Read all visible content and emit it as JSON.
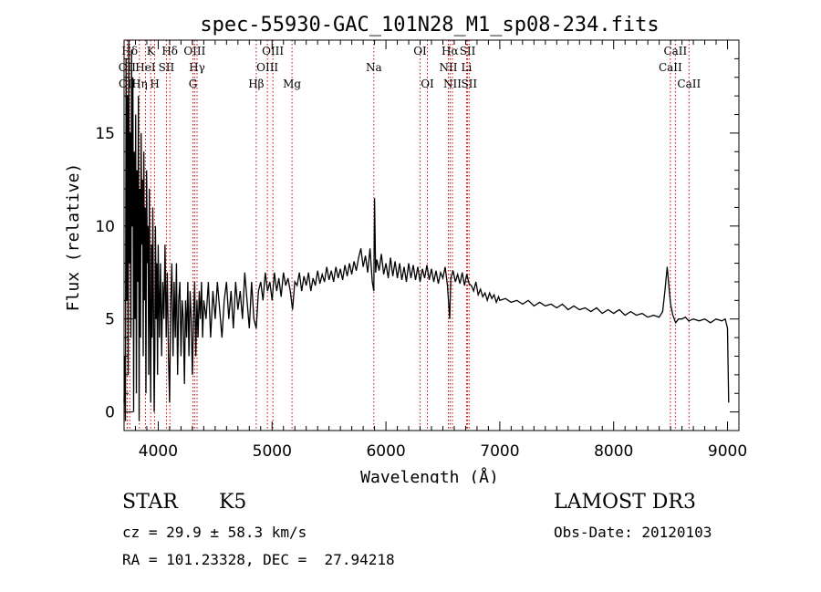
{
  "chart_data": {
    "type": "line",
    "title": "spec-55930-GAC_101N28_M1_sp08-234.fits",
    "xlabel": "Wavelength (Å)",
    "ylabel": "Flux (relative)",
    "xlim": [
      3700,
      9100
    ],
    "ylim": [
      -1,
      20
    ],
    "xticks": [
      4000,
      5000,
      6000,
      7000,
      8000,
      9000
    ],
    "yticks": [
      0,
      5,
      10,
      15
    ],
    "grid": false,
    "line_color": "#000000",
    "marker_color": "#cc0000",
    "spectral_lines": [
      {
        "label": "OII",
        "wave": 3727,
        "row": 1
      },
      {
        "label": "OII",
        "wave": 3729,
        "row": 2
      },
      {
        "label": "Hδ",
        "wave": 3750,
        "row": 0
      },
      {
        "label": "Hη",
        "wave": 3835,
        "row": 2
      },
      {
        "label": "HeI",
        "wave": 3888,
        "row": 1
      },
      {
        "label": "K",
        "wave": 3934,
        "row": 0
      },
      {
        "label": "H",
        "wave": 3969,
        "row": 2
      },
      {
        "label": "SII",
        "wave": 4072,
        "row": 1
      },
      {
        "label": "Hδ",
        "wave": 4102,
        "row": 0
      },
      {
        "label": "OIII",
        "wave": 4320,
        "row": 0
      },
      {
        "label": "G",
        "wave": 4305,
        "row": 2
      },
      {
        "label": "Hγ",
        "wave": 4341,
        "row": 1
      },
      {
        "label": "Hβ",
        "wave": 4861,
        "row": 2
      },
      {
        "label": "OIII",
        "wave": 4959,
        "row": 1
      },
      {
        "label": "OIII",
        "wave": 5007,
        "row": 0
      },
      {
        "label": "Mg",
        "wave": 5175,
        "row": 2
      },
      {
        "label": "Na",
        "wave": 5894,
        "row": 1
      },
      {
        "label": "OI",
        "wave": 6300,
        "row": 0
      },
      {
        "label": "OI",
        "wave": 6364,
        "row": 2
      },
      {
        "label": "NII",
        "wave": 6548,
        "row": 1
      },
      {
        "label": "Hα",
        "wave": 6563,
        "row": 0
      },
      {
        "label": "NII",
        "wave": 6584,
        "row": 2
      },
      {
        "label": "Li",
        "wave": 6708,
        "row": 1
      },
      {
        "label": "SII",
        "wave": 6717,
        "row": 0
      },
      {
        "label": "SII",
        "wave": 6731,
        "row": 2
      },
      {
        "label": "CaII",
        "wave": 8498,
        "row": 1
      },
      {
        "label": "CaII",
        "wave": 8542,
        "row": 0
      },
      {
        "label": "CaII",
        "wave": 8662,
        "row": 2
      }
    ],
    "series": [
      {
        "name": "flux",
        "points": [
          [
            3700,
            0.5
          ],
          [
            3705,
            3
          ],
          [
            3712,
            -0.5
          ],
          [
            3718,
            19
          ],
          [
            3724,
            6
          ],
          [
            3730,
            17
          ],
          [
            3736,
            2
          ],
          [
            3742,
            20
          ],
          [
            3748,
            8
          ],
          [
            3754,
            15
          ],
          [
            3760,
            4
          ],
          [
            3766,
            19.5
          ],
          [
            3772,
            10
          ],
          [
            3778,
            18
          ],
          [
            3784,
            0
          ],
          [
            3790,
            14
          ],
          [
            3796,
            5
          ],
          [
            3802,
            16
          ],
          [
            3808,
            1
          ],
          [
            3814,
            13
          ],
          [
            3820,
            7
          ],
          [
            3826,
            17
          ],
          [
            3832,
            -0.5
          ],
          [
            3838,
            12
          ],
          [
            3844,
            4
          ],
          [
            3850,
            15
          ],
          [
            3856,
            9
          ],
          [
            3862,
            12.5
          ],
          [
            3868,
            3
          ],
          [
            3874,
            14
          ],
          [
            3880,
            6
          ],
          [
            3886,
            11
          ],
          [
            3892,
            1
          ],
          [
            3898,
            13
          ],
          [
            3904,
            8
          ],
          [
            3910,
            10
          ],
          [
            3916,
            2
          ],
          [
            3922,
            12
          ],
          [
            3928,
            5
          ],
          [
            3934,
            0.5
          ],
          [
            3940,
            9
          ],
          [
            3946,
            4
          ],
          [
            3952,
            11
          ],
          [
            3958,
            6
          ],
          [
            3964,
            0
          ],
          [
            3970,
            3
          ],
          [
            3976,
            10
          ],
          [
            3982,
            5
          ],
          [
            3988,
            8
          ],
          [
            3994,
            2
          ],
          [
            4000,
            9
          ],
          [
            4010,
            4
          ],
          [
            4020,
            8
          ],
          [
            4030,
            3
          ],
          [
            4040,
            7
          ],
          [
            4050,
            5
          ],
          [
            4060,
            9
          ],
          [
            4070,
            4
          ],
          [
            4080,
            7.5
          ],
          [
            4090,
            3
          ],
          [
            4100,
            0.5
          ],
          [
            4110,
            6
          ],
          [
            4120,
            8
          ],
          [
            4130,
            3
          ],
          [
            4140,
            7
          ],
          [
            4150,
            4
          ],
          [
            4160,
            8
          ],
          [
            4170,
            2
          ],
          [
            4180,
            6
          ],
          [
            4190,
            7
          ],
          [
            4200,
            3
          ],
          [
            4210,
            6
          ],
          [
            4220,
            5
          ],
          [
            4230,
            1.5
          ],
          [
            4240,
            6
          ],
          [
            4250,
            4
          ],
          [
            4260,
            7
          ],
          [
            4270,
            3
          ],
          [
            4280,
            6.5
          ],
          [
            4290,
            5
          ],
          [
            4300,
            2
          ],
          [
            4310,
            5
          ],
          [
            4320,
            7
          ],
          [
            4330,
            3
          ],
          [
            4340,
            6
          ],
          [
            4350,
            4
          ],
          [
            4360,
            6.5
          ],
          [
            4370,
            5
          ],
          [
            4380,
            7
          ],
          [
            4390,
            4
          ],
          [
            4400,
            6
          ],
          [
            4420,
            5
          ],
          [
            4440,
            7
          ],
          [
            4460,
            4
          ],
          [
            4480,
            6.5
          ],
          [
            4500,
            5
          ],
          [
            4520,
            7
          ],
          [
            4540,
            5.5
          ],
          [
            4560,
            4
          ],
          [
            4580,
            6
          ],
          [
            4600,
            7
          ],
          [
            4620,
            5
          ],
          [
            4640,
            6.5
          ],
          [
            4660,
            4.5
          ],
          [
            4680,
            7
          ],
          [
            4700,
            5.5
          ],
          [
            4720,
            6.5
          ],
          [
            4740,
            5
          ],
          [
            4760,
            7.5
          ],
          [
            4780,
            6
          ],
          [
            4800,
            4.5
          ],
          [
            4820,
            7
          ],
          [
            4840,
            5
          ],
          [
            4861,
            4.5
          ],
          [
            4880,
            6.5
          ],
          [
            4900,
            7
          ],
          [
            4920,
            6
          ],
          [
            4940,
            7.5
          ],
          [
            4960,
            6.5
          ],
          [
            4980,
            7
          ],
          [
            5000,
            6
          ],
          [
            5020,
            7.5
          ],
          [
            5040,
            6.5
          ],
          [
            5060,
            7.2
          ],
          [
            5080,
            6.2
          ],
          [
            5100,
            7.5
          ],
          [
            5120,
            6.8
          ],
          [
            5140,
            7.2
          ],
          [
            5160,
            6.5
          ],
          [
            5180,
            5.5
          ],
          [
            5200,
            7
          ],
          [
            5220,
            6.8
          ],
          [
            5240,
            7.5
          ],
          [
            5260,
            6.5
          ],
          [
            5280,
            7.3
          ],
          [
            5300,
            6.8
          ],
          [
            5320,
            7.5
          ],
          [
            5340,
            6.5
          ],
          [
            5360,
            7.2
          ],
          [
            5380,
            6.8
          ],
          [
            5400,
            7.6
          ],
          [
            5420,
            6.9
          ],
          [
            5440,
            7.4
          ],
          [
            5460,
            7
          ],
          [
            5480,
            7.8
          ],
          [
            5500,
            7.1
          ],
          [
            5520,
            7.6
          ],
          [
            5540,
            7
          ],
          [
            5560,
            7.8
          ],
          [
            5580,
            7.2
          ],
          [
            5600,
            7.7
          ],
          [
            5620,
            7.1
          ],
          [
            5640,
            7.9
          ],
          [
            5660,
            7.3
          ],
          [
            5680,
            8
          ],
          [
            5700,
            7.4
          ],
          [
            5720,
            8.1
          ],
          [
            5740,
            7.6
          ],
          [
            5760,
            8.3
          ],
          [
            5780,
            8.8
          ],
          [
            5800,
            7.8
          ],
          [
            5820,
            8.4
          ],
          [
            5840,
            7.5
          ],
          [
            5860,
            8.8
          ],
          [
            5880,
            7
          ],
          [
            5894,
            6.5
          ],
          [
            5900,
            11.5
          ],
          [
            5910,
            7.5
          ],
          [
            5920,
            8.2
          ],
          [
            5940,
            7.6
          ],
          [
            5960,
            8.5
          ],
          [
            5980,
            7.4
          ],
          [
            6000,
            8
          ],
          [
            6020,
            7.2
          ],
          [
            6040,
            8.3
          ],
          [
            6060,
            7.3
          ],
          [
            6080,
            8.1
          ],
          [
            6100,
            7.2
          ],
          [
            6120,
            8
          ],
          [
            6140,
            7.1
          ],
          [
            6160,
            7.8
          ],
          [
            6180,
            7
          ],
          [
            6200,
            8
          ],
          [
            6220,
            7.2
          ],
          [
            6240,
            7.9
          ],
          [
            6260,
            7.1
          ],
          [
            6280,
            7.8
          ],
          [
            6300,
            7
          ],
          [
            6320,
            7.7
          ],
          [
            6340,
            7.2
          ],
          [
            6360,
            7.9
          ],
          [
            6380,
            7.1
          ],
          [
            6400,
            7.7
          ],
          [
            6420,
            7
          ],
          [
            6440,
            7.6
          ],
          [
            6460,
            6.9
          ],
          [
            6480,
            7.5
          ],
          [
            6500,
            7.2
          ],
          [
            6520,
            7.8
          ],
          [
            6540,
            6.8
          ],
          [
            6560,
            5
          ],
          [
            6570,
            7.2
          ],
          [
            6590,
            7.6
          ],
          [
            6610,
            7
          ],
          [
            6630,
            7.4
          ],
          [
            6650,
            6.9
          ],
          [
            6670,
            7.5
          ],
          [
            6690,
            6.8
          ],
          [
            6710,
            7.4
          ],
          [
            6730,
            6.9
          ],
          [
            6750,
            6.8
          ],
          [
            6770,
            6.5
          ],
          [
            6790,
            7
          ],
          [
            6810,
            6.3
          ],
          [
            6830,
            6.6
          ],
          [
            6850,
            6.2
          ],
          [
            6870,
            6.4
          ],
          [
            6890,
            6
          ],
          [
            6910,
            6.4
          ],
          [
            6930,
            6.1
          ],
          [
            6950,
            6.3
          ],
          [
            6970,
            5.9
          ],
          [
            6990,
            6.2
          ],
          [
            7000,
            6
          ],
          [
            7050,
            6.1
          ],
          [
            7100,
            5.9
          ],
          [
            7150,
            6
          ],
          [
            7200,
            5.8
          ],
          [
            7250,
            6
          ],
          [
            7300,
            5.7
          ],
          [
            7350,
            5.9
          ],
          [
            7400,
            5.7
          ],
          [
            7450,
            5.8
          ],
          [
            7500,
            5.6
          ],
          [
            7550,
            5.8
          ],
          [
            7600,
            5.5
          ],
          [
            7650,
            5.7
          ],
          [
            7700,
            5.5
          ],
          [
            7750,
            5.6
          ],
          [
            7800,
            5.4
          ],
          [
            7850,
            5.6
          ],
          [
            7900,
            5.3
          ],
          [
            7950,
            5.5
          ],
          [
            8000,
            5.3
          ],
          [
            8050,
            5.5
          ],
          [
            8100,
            5.2
          ],
          [
            8150,
            5.4
          ],
          [
            8200,
            5.2
          ],
          [
            8250,
            5.3
          ],
          [
            8300,
            5.1
          ],
          [
            8350,
            5.2
          ],
          [
            8400,
            5.1
          ],
          [
            8430,
            5.4
          ],
          [
            8450,
            6.5
          ],
          [
            8470,
            7.8
          ],
          [
            8485,
            6.8
          ],
          [
            8500,
            5.8
          ],
          [
            8520,
            5.2
          ],
          [
            8545,
            4.8
          ],
          [
            8570,
            5
          ],
          [
            8600,
            5
          ],
          [
            8630,
            5.1
          ],
          [
            8660,
            4.9
          ],
          [
            8700,
            5
          ],
          [
            8750,
            4.9
          ],
          [
            8800,
            5
          ],
          [
            8850,
            4.8
          ],
          [
            8900,
            5
          ],
          [
            8950,
            4.9
          ],
          [
            8980,
            5
          ],
          [
            9000,
            4.5
          ],
          [
            9010,
            0.5
          ]
        ]
      }
    ]
  },
  "info": {
    "object_class": "STAR",
    "subclass": "K5",
    "survey": "LAMOST DR3",
    "redshift": "cz = 29.9 ± 58.3 km/s",
    "obs_date": "Obs-Date: 20120103",
    "coords": "RA = 101.23328, DEC =  27.94218"
  }
}
